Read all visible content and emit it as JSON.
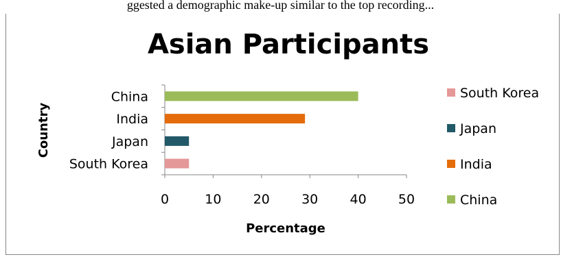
{
  "caption": "ggested a demographic make-up similar to the top recording...",
  "chart_data": {
    "type": "bar",
    "orientation": "horizontal",
    "title": "Asian Participants",
    "xlabel": "Percentage",
    "ylabel": "Country",
    "categories": [
      "South Korea",
      "Japan",
      "India",
      "China"
    ],
    "values": [
      5,
      5,
      29,
      40
    ],
    "colors": [
      "#E59898",
      "#215968",
      "#E46C0A",
      "#9BBB59"
    ],
    "xlim": [
      0,
      50
    ],
    "xticks": [
      0,
      10,
      20,
      30,
      40,
      50
    ],
    "grid": false,
    "legend": {
      "placement": "right",
      "entries": [
        "South Korea",
        "Japan",
        "India",
        "China"
      ]
    }
  }
}
